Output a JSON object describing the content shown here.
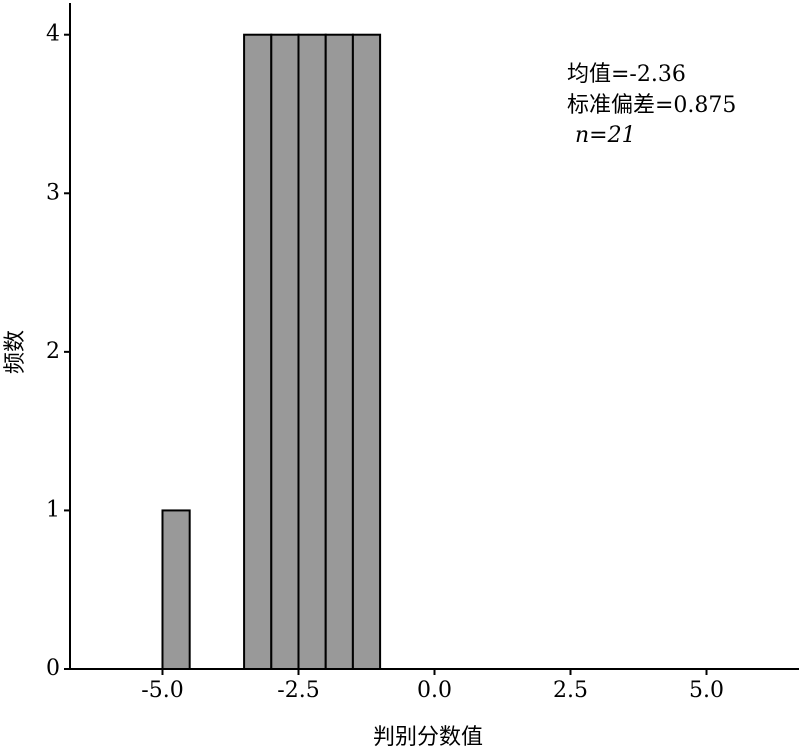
{
  "chart_data": {
    "type": "histogram",
    "x_label": "判别分数值",
    "y_label": "频数",
    "bins": [
      -5.0,
      -4.5,
      -4.0,
      -3.5,
      -3.0,
      -2.5,
      -2.0,
      -1.5,
      -1.0
    ],
    "values": [
      1,
      0,
      0,
      4,
      4,
      4,
      4,
      4
    ],
    "color": "#999999",
    "xlim": [
      -6.7,
      6.7
    ],
    "xticks": [
      {
        "value": -5,
        "label": "-5.0"
      },
      -2.5,
      {
        "value": 0,
        "label": "0.0"
      },
      2.5,
      {
        "value": 5,
        "label": "5.0"
      }
    ],
    "ylim": [
      0,
      4.2
    ],
    "yticks": [
      0,
      1,
      2,
      3,
      4
    ],
    "annotations": [
      "均值=-2.36",
      "标准偏差=0.875",
      "n=21"
    ]
  }
}
